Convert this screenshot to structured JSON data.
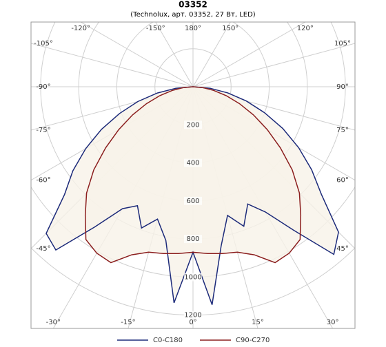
{
  "chart_data": {
    "type": "polar",
    "title": "03352",
    "subtitle": "(Technolux, арт. 03352, 27 Вт, LED)",
    "angles": [
      -180,
      -175,
      -170,
      -165,
      -160,
      -155,
      -150,
      -145,
      -140,
      -135,
      -130,
      -125,
      -120,
      -115,
      -110,
      -105,
      -100,
      -95,
      -90,
      -85,
      -80,
      -75,
      -70,
      -65,
      -60,
      -55,
      -50,
      -45,
      -40,
      -35,
      -30,
      -25,
      -20,
      -15,
      -10,
      -5,
      0,
      5,
      10,
      15,
      20,
      25,
      30,
      35,
      40,
      45,
      50,
      55,
      60,
      65,
      70,
      75,
      80,
      85,
      90,
      95,
      100,
      105,
      110,
      115,
      120,
      125,
      130,
      135,
      140,
      145,
      150,
      155,
      160,
      165,
      170,
      175,
      180
    ],
    "series": [
      {
        "name": "C0-C180",
        "color": "#1c2a7a",
        "values": [
          0,
          0,
          0,
          0,
          0,
          0,
          0,
          0,
          0,
          0,
          0,
          0,
          0,
          0,
          0,
          0,
          0,
          0,
          0,
          90,
          190,
          300,
          410,
          530,
          650,
          770,
          880,
          1090,
          1120,
          900,
          740,
          690,
          790,
          720,
          820,
          1140,
          870,
          1150,
          850,
          700,
          780,
          680,
          760,
          920,
          1150,
          1080,
          880,
          760,
          640,
          520,
          400,
          290,
          185,
          90,
          0,
          0,
          0,
          0,
          0,
          0,
          0,
          0,
          0,
          0,
          0,
          0,
          0,
          0,
          0,
          0,
          0,
          0,
          0
        ]
      },
      {
        "name": "C90-C270",
        "color": "#8b1e1e",
        "values": [
          0,
          0,
          0,
          0,
          0,
          0,
          0,
          0,
          0,
          0,
          0,
          0,
          0,
          0,
          0,
          0,
          0,
          0,
          0,
          50,
          110,
          180,
          260,
          350,
          450,
          560,
          680,
          790,
          880,
          980,
          1010,
          1020,
          940,
          900,
          890,
          880,
          870,
          880,
          890,
          900,
          940,
          1020,
          1010,
          980,
          880,
          790,
          680,
          560,
          450,
          350,
          260,
          180,
          110,
          50,
          0,
          0,
          0,
          0,
          0,
          0,
          0,
          0,
          0,
          0,
          0,
          0,
          0,
          0,
          0,
          0,
          0,
          0,
          0
        ]
      }
    ],
    "rlim": [
      0,
      1270
    ],
    "rticks": [
      200,
      400,
      600,
      800,
      1000,
      1200
    ],
    "angle_ticks": [
      {
        "value": -120,
        "label": "-120°"
      },
      {
        "value": -150,
        "label": "-150°"
      },
      {
        "value": 180,
        "label": "180°"
      },
      {
        "value": 150,
        "label": "150°"
      },
      {
        "value": 120,
        "label": "120°"
      },
      {
        "value": -105,
        "label": "-105°"
      },
      {
        "value": -90,
        "label": "-90°"
      },
      {
        "value": -75,
        "label": "-75°"
      },
      {
        "value": -60,
        "label": "-60°"
      },
      {
        "value": -45,
        "label": "-45°"
      },
      {
        "value": 105,
        "label": "105°"
      },
      {
        "value": 90,
        "label": "90°"
      },
      {
        "value": 75,
        "label": "75°"
      },
      {
        "value": 60,
        "label": "60°"
      },
      {
        "value": 45,
        "label": "45°"
      },
      {
        "value": -30,
        "label": "-30°"
      },
      {
        "value": -15,
        "label": "-15°"
      },
      {
        "value": 0,
        "label": "0°"
      },
      {
        "value": 15,
        "label": "15°"
      },
      {
        "value": 30,
        "label": "30°"
      }
    ],
    "fill_color": "#f8f2e9",
    "grid": true
  }
}
